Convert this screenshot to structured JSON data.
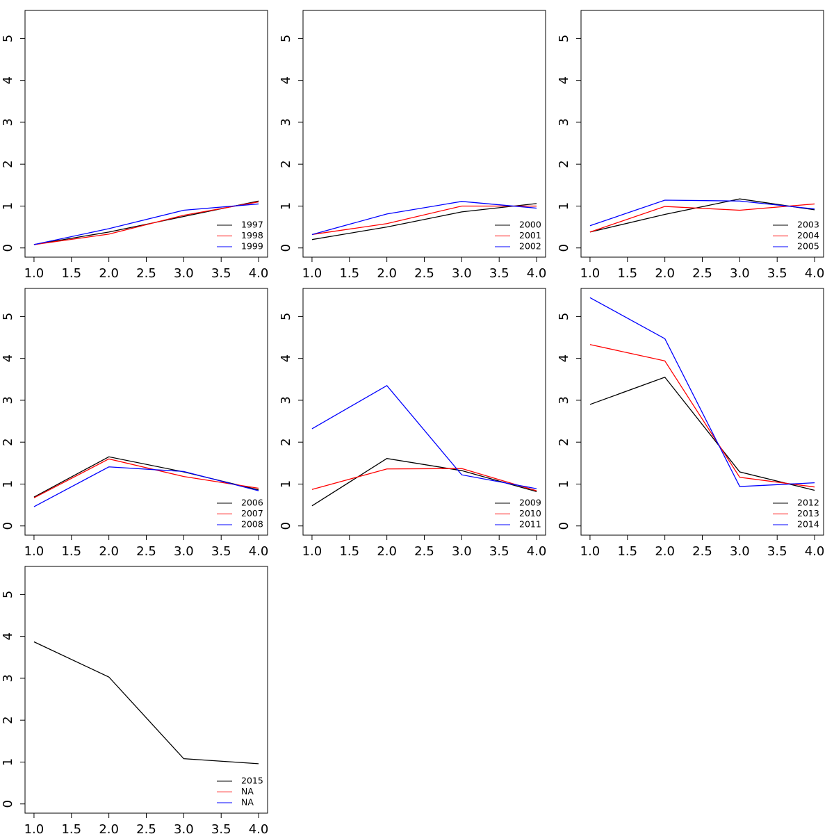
{
  "chart_data": [
    {
      "type": "line",
      "x": [
        1,
        2,
        3,
        4
      ],
      "legend": "bottomright",
      "series": [
        {
          "name": "1997",
          "color": "#000000",
          "values": [
            0.08,
            0.38,
            0.75,
            1.12
          ]
        },
        {
          "name": "1998",
          "color": "#ff0000",
          "values": [
            0.08,
            0.33,
            0.78,
            1.1
          ]
        },
        {
          "name": "1999",
          "color": "#0000ff",
          "values": [
            0.08,
            0.46,
            0.9,
            1.05
          ]
        }
      ],
      "xlim": [
        0.88,
        4.12
      ],
      "ylim": [
        -0.22,
        5.67
      ],
      "xticks": [
        {
          "value": 1,
          "label": "1.0"
        },
        {
          "value": 1.5,
          "label": "1.5"
        },
        {
          "value": 2,
          "label": "2.0"
        },
        {
          "value": 2.5,
          "label": "2.5"
        },
        {
          "value": 3,
          "label": "3.0"
        },
        {
          "value": 3.5,
          "label": "3.5"
        },
        {
          "value": 4,
          "label": "4.0"
        }
      ],
      "yticks": [
        0,
        1,
        2,
        3,
        4,
        5
      ]
    },
    {
      "type": "line",
      "x": [
        1,
        2,
        3,
        4
      ],
      "legend": "bottomright",
      "series": [
        {
          "name": "2000",
          "color": "#000000",
          "values": [
            0.2,
            0.5,
            0.86,
            1.06
          ]
        },
        {
          "name": "2001",
          "color": "#ff0000",
          "values": [
            0.32,
            0.58,
            1.0,
            1.0
          ]
        },
        {
          "name": "2002",
          "color": "#0000ff",
          "values": [
            0.32,
            0.81,
            1.11,
            0.95
          ]
        }
      ],
      "xlim": [
        0.88,
        4.12
      ],
      "ylim": [
        -0.22,
        5.67
      ],
      "xticks": [
        {
          "value": 1,
          "label": "1.0"
        },
        {
          "value": 1.5,
          "label": "1.5"
        },
        {
          "value": 2,
          "label": "2.0"
        },
        {
          "value": 2.5,
          "label": "2.5"
        },
        {
          "value": 3,
          "label": "3.0"
        },
        {
          "value": 3.5,
          "label": "3.5"
        },
        {
          "value": 4,
          "label": "4.0"
        }
      ],
      "yticks": [
        0,
        1,
        2,
        3,
        4,
        5
      ]
    },
    {
      "type": "line",
      "x": [
        1,
        2,
        3,
        4
      ],
      "legend": "bottomright",
      "series": [
        {
          "name": "2003",
          "color": "#000000",
          "values": [
            0.38,
            0.8,
            1.17,
            0.91
          ]
        },
        {
          "name": "2004",
          "color": "#ff0000",
          "values": [
            0.38,
            0.99,
            0.9,
            1.05
          ]
        },
        {
          "name": "2005",
          "color": "#0000ff",
          "values": [
            0.53,
            1.14,
            1.12,
            0.93
          ]
        }
      ],
      "xlim": [
        0.88,
        4.12
      ],
      "ylim": [
        -0.22,
        5.67
      ],
      "xticks": [
        {
          "value": 1,
          "label": "1.0"
        },
        {
          "value": 1.5,
          "label": "1.5"
        },
        {
          "value": 2,
          "label": "2.0"
        },
        {
          "value": 2.5,
          "label": "2.5"
        },
        {
          "value": 3,
          "label": "3.0"
        },
        {
          "value": 3.5,
          "label": "3.5"
        },
        {
          "value": 4,
          "label": "4.0"
        }
      ],
      "yticks": [
        0,
        1,
        2,
        3,
        4,
        5
      ]
    },
    {
      "type": "line",
      "x": [
        1,
        2,
        3,
        4
      ],
      "legend": "bottomright",
      "series": [
        {
          "name": "2006",
          "color": "#000000",
          "values": [
            0.69,
            1.65,
            1.29,
            0.86
          ]
        },
        {
          "name": "2007",
          "color": "#ff0000",
          "values": [
            0.67,
            1.6,
            1.18,
            0.9
          ]
        },
        {
          "name": "2008",
          "color": "#0000ff",
          "values": [
            0.46,
            1.41,
            1.3,
            0.84
          ]
        }
      ],
      "xlim": [
        0.88,
        4.12
      ],
      "ylim": [
        -0.22,
        5.67
      ],
      "xticks": [
        {
          "value": 1,
          "label": "1.0"
        },
        {
          "value": 1.5,
          "label": "1.5"
        },
        {
          "value": 2,
          "label": "2.0"
        },
        {
          "value": 2.5,
          "label": "2.5"
        },
        {
          "value": 3,
          "label": "3.0"
        },
        {
          "value": 3.5,
          "label": "3.5"
        },
        {
          "value": 4,
          "label": "4.0"
        }
      ],
      "yticks": [
        0,
        1,
        2,
        3,
        4,
        5
      ]
    },
    {
      "type": "line",
      "x": [
        1,
        2,
        3,
        4
      ],
      "legend": "bottomright",
      "series": [
        {
          "name": "2009",
          "color": "#000000",
          "values": [
            0.48,
            1.61,
            1.32,
            0.82
          ]
        },
        {
          "name": "2010",
          "color": "#ff0000",
          "values": [
            0.87,
            1.36,
            1.37,
            0.84
          ]
        },
        {
          "name": "2011",
          "color": "#0000ff",
          "values": [
            2.32,
            3.35,
            1.22,
            0.89
          ]
        }
      ],
      "xlim": [
        0.88,
        4.12
      ],
      "ylim": [
        -0.22,
        5.67
      ],
      "xticks": [
        {
          "value": 1,
          "label": "1.0"
        },
        {
          "value": 1.5,
          "label": "1.5"
        },
        {
          "value": 2,
          "label": "2.0"
        },
        {
          "value": 2.5,
          "label": "2.5"
        },
        {
          "value": 3,
          "label": "3.0"
        },
        {
          "value": 3.5,
          "label": "3.5"
        },
        {
          "value": 4,
          "label": "4.0"
        }
      ],
      "yticks": [
        0,
        1,
        2,
        3,
        4,
        5
      ]
    },
    {
      "type": "line",
      "x": [
        1,
        2,
        3,
        4
      ],
      "legend": "bottomright",
      "series": [
        {
          "name": "2012",
          "color": "#000000",
          "values": [
            2.9,
            3.55,
            1.29,
            0.85
          ]
        },
        {
          "name": "2013",
          "color": "#ff0000",
          "values": [
            4.33,
            3.94,
            1.16,
            0.93
          ]
        },
        {
          "name": "2014",
          "color": "#0000ff",
          "values": [
            5.45,
            4.47,
            0.94,
            1.03
          ]
        }
      ],
      "xlim": [
        0.88,
        4.12
      ],
      "ylim": [
        -0.22,
        5.67
      ],
      "xticks": [
        {
          "value": 1,
          "label": "1.0"
        },
        {
          "value": 1.5,
          "label": "1.5"
        },
        {
          "value": 2,
          "label": "2.0"
        },
        {
          "value": 2.5,
          "label": "2.5"
        },
        {
          "value": 3,
          "label": "3.0"
        },
        {
          "value": 3.5,
          "label": "3.5"
        },
        {
          "value": 4,
          "label": "4.0"
        }
      ],
      "yticks": [
        0,
        1,
        2,
        3,
        4,
        5
      ]
    },
    {
      "type": "line",
      "x": [
        1,
        2,
        3,
        4
      ],
      "legend": "bottomright",
      "series": [
        {
          "name": "2015",
          "color": "#000000",
          "values": [
            3.87,
            3.03,
            1.08,
            0.96
          ]
        },
        {
          "name": "NA",
          "color": "#ff0000",
          "values": [
            null,
            null,
            null,
            null
          ]
        },
        {
          "name": "NA",
          "color": "#0000ff",
          "values": [
            null,
            null,
            null,
            null
          ]
        }
      ],
      "xlim": [
        0.88,
        4.12
      ],
      "ylim": [
        -0.22,
        5.67
      ],
      "xticks": [
        {
          "value": 1,
          "label": "1.0"
        },
        {
          "value": 1.5,
          "label": "1.5"
        },
        {
          "value": 2,
          "label": "2.0"
        },
        {
          "value": 2.5,
          "label": "2.5"
        },
        {
          "value": 3,
          "label": "3.0"
        },
        {
          "value": 3.5,
          "label": "3.5"
        },
        {
          "value": 4,
          "label": "4.0"
        }
      ],
      "yticks": [
        0,
        1,
        2,
        3,
        4,
        5
      ]
    }
  ]
}
